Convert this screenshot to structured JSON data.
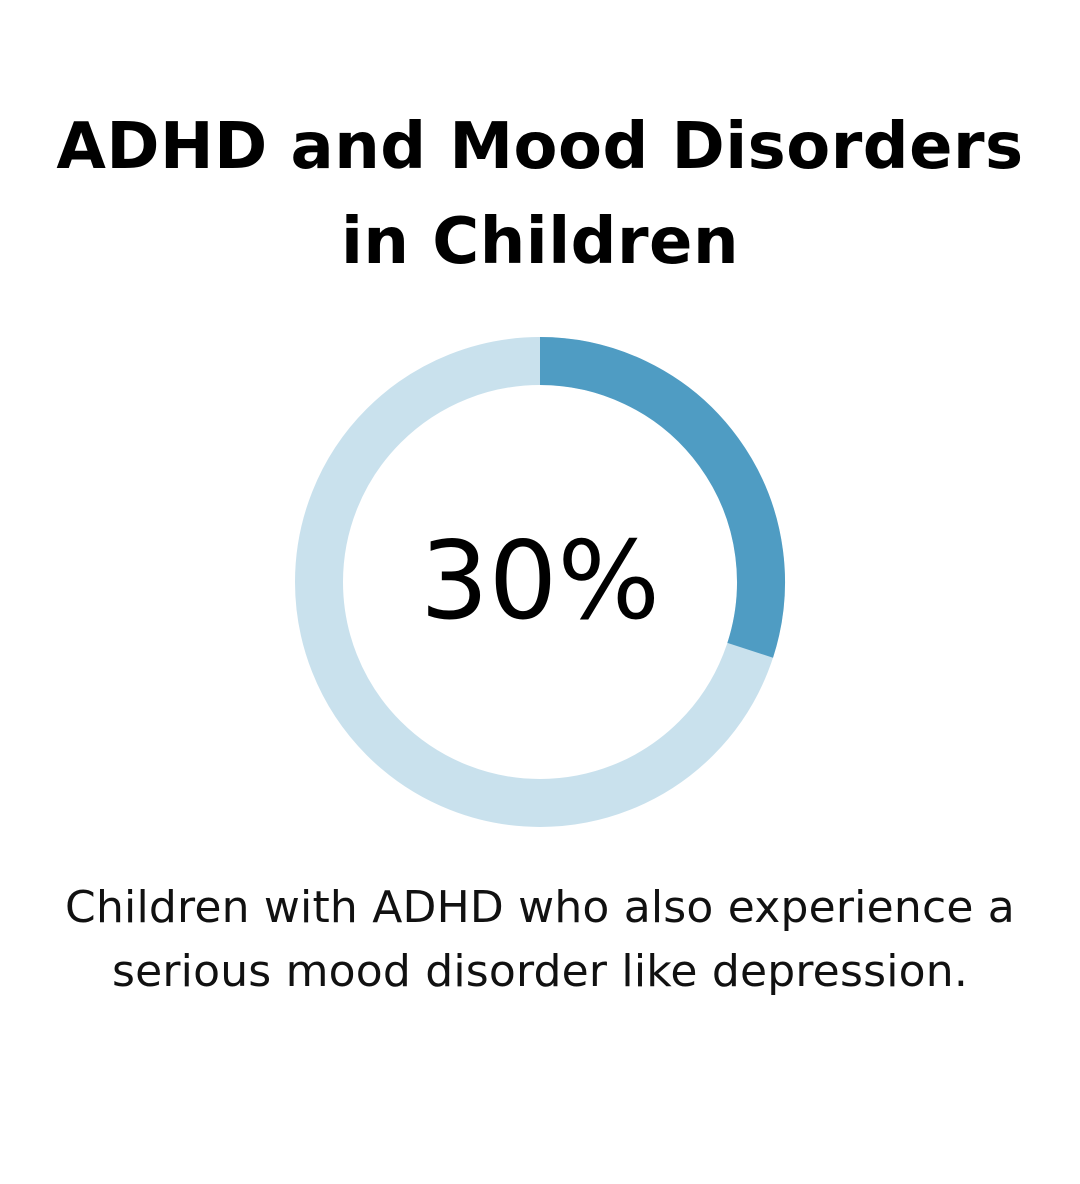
{
  "title_line1": "ADHD and Mood Disorders",
  "title_line2": "in Children",
  "caption_line1": "Children with ADHD who also experience a",
  "caption_line2": "serious mood disorder like depression.",
  "chart_data": {
    "type": "pie",
    "style": "donut",
    "center_label": "30%",
    "values": [
      30,
      70
    ],
    "colors": {
      "highlight": "#4f9cc3",
      "remainder": "#c9e1ed",
      "text": "#000000"
    }
  }
}
